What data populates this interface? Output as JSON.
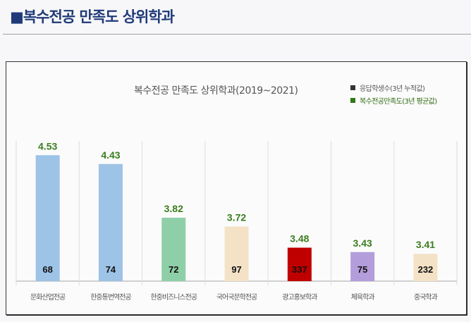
{
  "header": {
    "title": "■복수전공 만족도 상위학과"
  },
  "chart_data": {
    "type": "bar",
    "title": "복수전공 만족도 상위학과(2019~2021)",
    "legend": [
      {
        "label": "응답학생수(3년 누적값)",
        "color": "#333333",
        "text_color": "#555555"
      },
      {
        "label": "복수전공만족도(3년 평균값)",
        "color": "#2e7a14",
        "text_color": "#2e6a10"
      }
    ],
    "legend_placement": "top-right",
    "categories": [
      "문화산업전공",
      "한중통번역전공",
      "한중비즈니스전공",
      "국어국문학전공",
      "광고홍보학과",
      "체육학과",
      "중국학과"
    ],
    "series": [
      {
        "name": "복수전공만족도(3년 평균값)",
        "values": [
          4.53,
          4.43,
          3.82,
          3.72,
          3.48,
          3.43,
          3.41
        ]
      },
      {
        "name": "응답학생수(3년 누적값)",
        "values": [
          68,
          74,
          72,
          97,
          337,
          75,
          232
        ]
      }
    ],
    "bar_colors": [
      "#9dc3e6",
      "#9dc3e6",
      "#8fcfa7",
      "#f3e2c6",
      "#c00000",
      "#b39ddb",
      "#f3e2c6"
    ],
    "value_label_color": "#3b7d1e",
    "grid": false
  }
}
